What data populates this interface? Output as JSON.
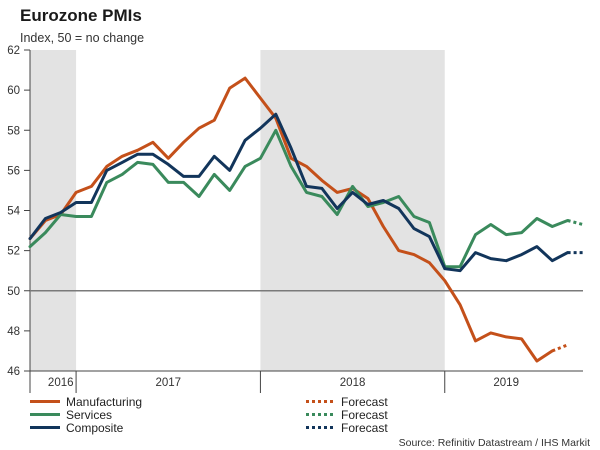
{
  "chart_data": {
    "type": "line",
    "title": "Eurozone PMIs",
    "subtitle": "Index, 50 = no change",
    "source": "Source: Refinitiv Datastream / IHS Markit",
    "ylim": [
      46,
      62
    ],
    "yticks": [
      46,
      48,
      50,
      52,
      54,
      56,
      58,
      60,
      62
    ],
    "reference_line": 50,
    "x_range": [
      "2016-10",
      "2019-10"
    ],
    "x_labels": [
      {
        "label": "2016",
        "center": "2016-12"
      },
      {
        "label": "2017",
        "center": "2017-07"
      },
      {
        "label": "2018",
        "center": "2018-07"
      },
      {
        "label": "2019",
        "center": "2019-05"
      }
    ],
    "year_dividers": [
      "2017-01",
      "2018-01",
      "2019-01"
    ],
    "shaded_periods": [
      [
        "2016-10",
        "2017-01"
      ],
      [
        "2018-01",
        "2019-01"
      ]
    ],
    "months": [
      "2016-10",
      "2016-11",
      "2016-12",
      "2017-01",
      "2017-02",
      "2017-03",
      "2017-04",
      "2017-05",
      "2017-06",
      "2017-07",
      "2017-08",
      "2017-09",
      "2017-10",
      "2017-11",
      "2017-12",
      "2018-01",
      "2018-02",
      "2018-03",
      "2018-04",
      "2018-05",
      "2018-06",
      "2018-07",
      "2018-08",
      "2018-09",
      "2018-10",
      "2018-11",
      "2018-12",
      "2019-01",
      "2019-02",
      "2019-03",
      "2019-04",
      "2019-05",
      "2019-06",
      "2019-07",
      "2019-08",
      "2019-09"
    ],
    "series": [
      {
        "name": "Manufacturing",
        "color": "#c4501a",
        "values": [
          52.6,
          53.5,
          53.8,
          54.9,
          55.2,
          56.2,
          56.7,
          57.0,
          57.4,
          56.6,
          57.4,
          58.1,
          58.5,
          60.1,
          60.6,
          59.6,
          58.6,
          56.6,
          56.2,
          55.5,
          54.9,
          55.1,
          54.6,
          53.2,
          52.0,
          51.8,
          51.4,
          50.5,
          49.3,
          47.5,
          47.9,
          47.7,
          47.6,
          46.5,
          47.0
        ],
        "forecast_label": "Forecast",
        "forecast": [
          [
            "2019-08",
            47.0
          ],
          [
            "2019-09",
            47.3
          ]
        ]
      },
      {
        "name": "Services",
        "color": "#3a8a5c",
        "values": [
          52.2,
          52.9,
          53.8,
          53.7,
          53.7,
          55.4,
          55.8,
          56.4,
          56.3,
          55.4,
          55.4,
          54.7,
          55.8,
          55.0,
          56.2,
          56.6,
          58.0,
          56.2,
          54.9,
          54.7,
          53.8,
          55.2,
          54.2,
          54.4,
          54.7,
          53.7,
          53.4,
          51.2,
          51.2,
          52.8,
          53.3,
          52.8,
          52.9,
          53.6,
          53.2,
          53.5
        ],
        "forecast_label": "Forecast",
        "forecast": [
          [
            "2019-09",
            53.5
          ],
          [
            "2019-10",
            53.3
          ]
        ]
      },
      {
        "name": "Composite",
        "color": "#12355b",
        "values": [
          52.6,
          53.6,
          53.9,
          54.4,
          54.4,
          56.0,
          56.4,
          56.8,
          56.8,
          56.3,
          55.7,
          55.7,
          56.7,
          56.0,
          57.5,
          58.1,
          58.8,
          57.1,
          55.2,
          55.1,
          54.1,
          54.9,
          54.3,
          54.5,
          54.1,
          53.1,
          52.7,
          51.1,
          51.0,
          51.9,
          51.6,
          51.5,
          51.8,
          52.2,
          51.5,
          51.9
        ],
        "forecast_label": "Forecast",
        "forecast": [
          [
            "2019-09",
            51.9
          ],
          [
            "2019-10",
            51.9
          ]
        ]
      }
    ]
  }
}
